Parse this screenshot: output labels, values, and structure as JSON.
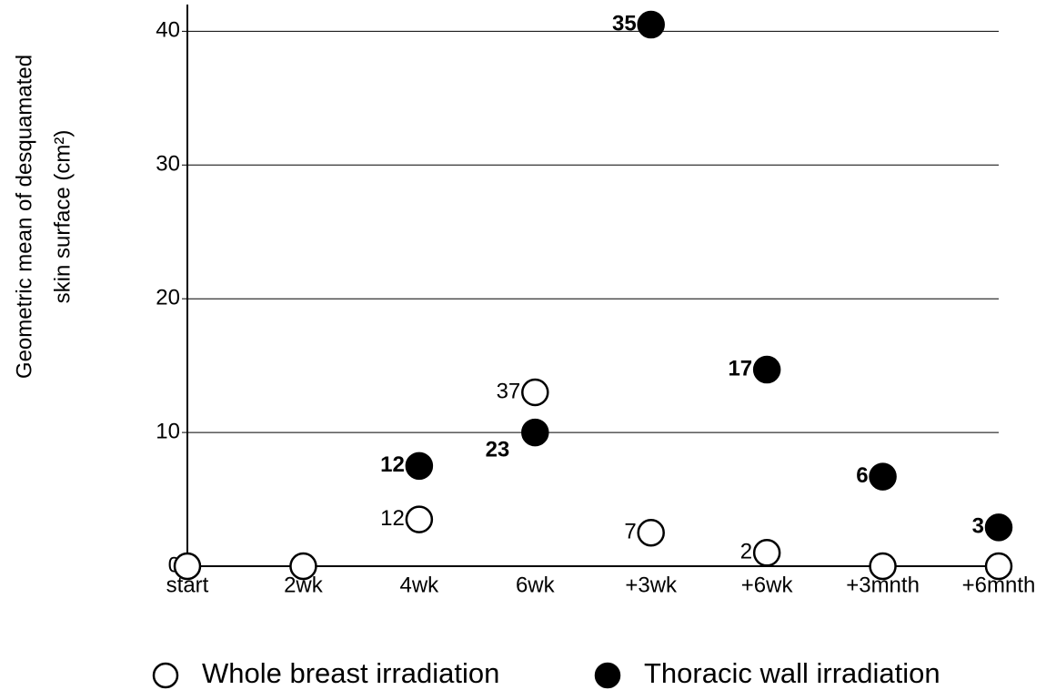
{
  "chart_data": {
    "type": "scatter",
    "y_label_lines": [
      "Geometric mean of desquamated",
      "skin surface (cm²)"
    ],
    "categories": [
      "start",
      "2wk",
      "4wk",
      "6wk",
      "+3wk",
      "+6wk",
      "+3mnth",
      "+6mnth"
    ],
    "series": [
      {
        "name": "Whole breast irradiation",
        "color": "#ffffff",
        "values": [
          0,
          0,
          3.5,
          13,
          2.5,
          1,
          0,
          0
        ],
        "n": [
          null,
          null,
          12,
          37,
          7,
          2,
          null,
          null
        ]
      },
      {
        "name": "Thoracic wall irradiation",
        "color": "#000000",
        "values": [
          null,
          null,
          7.5,
          10,
          40.5,
          14.7,
          6.7,
          2.9
        ],
        "n": [
          null,
          null,
          12,
          23,
          35,
          17,
          6,
          3
        ]
      }
    ],
    "ylim": [
      0,
      42
    ],
    "yticks": [
      0,
      10,
      20,
      30,
      40
    ],
    "grid": true
  }
}
